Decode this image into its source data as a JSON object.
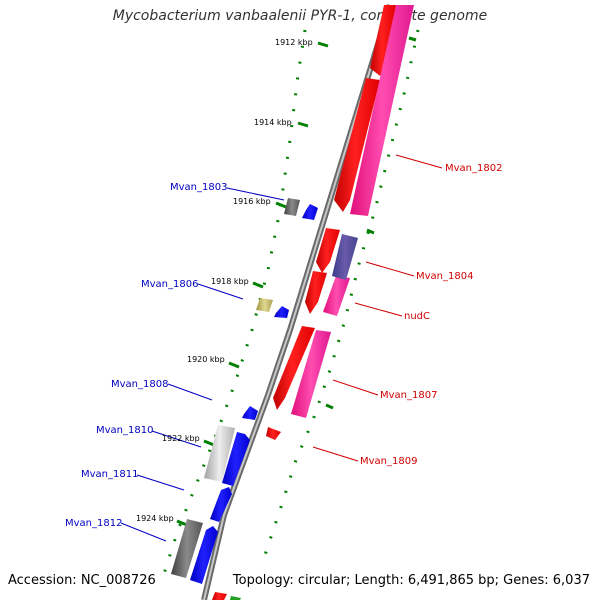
{
  "title": "Mycobacterium vanbaalenii PYR-1, complete genome",
  "accession": "Accession: NC_008726",
  "stats": "Topology: circular; Length: 6,491,865 bp; Genes: 6,037",
  "colors": {
    "backbone": "#808080",
    "forward_cds": "#ff0000",
    "reverse_cds": "#0000ff",
    "rna": "#ff1493",
    "ticks": "#008000",
    "label_forward": "#d00000",
    "label_reverse": "#0000c0"
  },
  "kbp_labels": [
    "1912 kbp",
    "1914 kbp",
    "1916 kbp",
    "1918 kbp",
    "1920 kbp",
    "1922 kbp",
    "1924 kbp"
  ],
  "forward_genes": [
    "Mvan_1802",
    "Mvan_1804",
    "nudC",
    "Mvan_1807",
    "Mvan_1809"
  ],
  "reverse_genes": [
    "Mvan_1803",
    "Mvan_1806",
    "Mvan_1808",
    "Mvan_1810",
    "Mvan_1811",
    "Mvan_1812"
  ]
}
